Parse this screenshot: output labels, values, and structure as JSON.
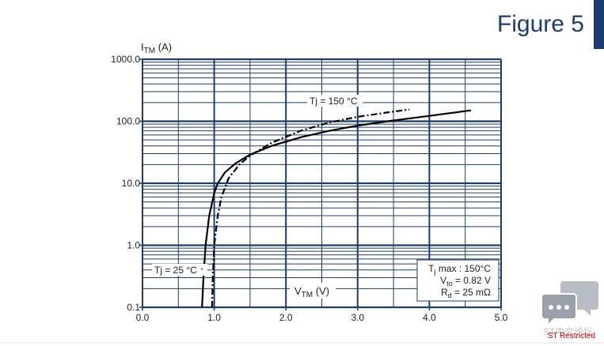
{
  "page_title": "Figure 5",
  "footer": "ST Restricted",
  "watermark": "ST中文论坛",
  "chart_data": {
    "type": "line",
    "ylabel": {
      "main": "I",
      "sub": "TM",
      "rest": " (A)"
    },
    "xlabel": {
      "main": "V",
      "sub": "TM",
      "rest": " (V)"
    },
    "ylog": true,
    "grid": true,
    "color": "#1d3c6e",
    "xlim": [
      0,
      5
    ],
    "ylim": [
      0.1,
      1000
    ],
    "xticks": [
      {
        "value": 0,
        "label": "0.0"
      },
      {
        "value": 1,
        "label": "1.0"
      },
      {
        "value": 2,
        "label": "2.0"
      },
      {
        "value": 3,
        "label": "3.0"
      },
      {
        "value": 4,
        "label": "4.0"
      },
      {
        "value": 5,
        "label": "5.0"
      }
    ],
    "xminorticks": [
      0.5,
      1.5,
      2.5,
      3.5,
      4.5
    ],
    "yticks": [
      {
        "value": 0.1,
        "label": "0.1"
      },
      {
        "value": 1,
        "label": "1.0"
      },
      {
        "value": 10,
        "label": "10.0"
      },
      {
        "value": 100,
        "label": "100.0"
      },
      {
        "value": 1000,
        "label": "1000.0"
      }
    ],
    "yminorticks": [
      0.2,
      0.3,
      0.4,
      0.5,
      0.6,
      0.7,
      0.8,
      0.9,
      2,
      3,
      4,
      5,
      6,
      7,
      8,
      9,
      20,
      30,
      40,
      50,
      60,
      70,
      80,
      90,
      200,
      300,
      400,
      500,
      600,
      700,
      800,
      900
    ],
    "series": [
      {
        "name": "Tj = 25 °C",
        "color": "#000000",
        "dash": "solid",
        "x": [
          0.83,
          0.85,
          0.88,
          0.93,
          1.0,
          1.05,
          1.15,
          1.3,
          1.5,
          1.8,
          2.2,
          2.6,
          3.0,
          3.5,
          4.0,
          4.58
        ],
        "values": [
          0.1,
          0.3,
          1,
          3,
          7,
          10,
          15,
          21,
          29,
          40,
          55,
          70,
          85,
          103,
          122,
          150
        ]
      },
      {
        "name": "Tj = 150 °C",
        "color": "#000000",
        "dash": "dashdot",
        "x": [
          0.97,
          0.98,
          1.0,
          1.05,
          1.1,
          1.2,
          1.35,
          1.5,
          1.8,
          2.2,
          2.6,
          3.0,
          3.4,
          3.72
        ],
        "values": [
          0.1,
          0.3,
          1,
          3,
          6,
          12,
          20,
          28,
          45,
          70,
          95,
          118,
          138,
          155
        ]
      }
    ],
    "annotations": [
      {
        "main": "T",
        "sub": "j",
        "rest": " max : 150°C"
      },
      {
        "main": "V",
        "sub": "to",
        "rest": " = 0.82 V"
      },
      {
        "main": "R",
        "sub": "d",
        "rest": " = 25 mΩ"
      }
    ]
  }
}
